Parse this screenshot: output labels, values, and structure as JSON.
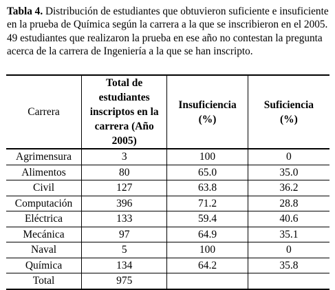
{
  "caption": {
    "label": "Tabla 4.",
    "text": "Distribución de estudiantes que obtuvieron suficiente e insuficiente en la prueba de Química según la carrera a la que se inscribieron en el 2005. 49 estudiantes que realizaron la prueba en ese año no contestan la pregunta acerca de la carrera de Ingeniería a la que se han inscripto."
  },
  "table": {
    "headers": {
      "carrera": "Carrera",
      "total": "Total de estudiantes inscriptos en la carrera (Año 2005)",
      "insuficiencia": "Insuficiencia (%)",
      "suficiencia": "Suficiencia (%)"
    },
    "rows": [
      {
        "carrera": "Agrimensura",
        "total": "3",
        "insuficiencia": "100",
        "suficiencia": "0"
      },
      {
        "carrera": "Alimentos",
        "total": "80",
        "insuficiencia": "65.0",
        "suficiencia": "35.0"
      },
      {
        "carrera": "Civil",
        "total": "127",
        "insuficiencia": "63.8",
        "suficiencia": "36.2"
      },
      {
        "carrera": "Computación",
        "total": "396",
        "insuficiencia": "71.2",
        "suficiencia": "28.8"
      },
      {
        "carrera": "Eléctrica",
        "total": "133",
        "insuficiencia": "59.4",
        "suficiencia": "40.6"
      },
      {
        "carrera": "Mecánica",
        "total": "97",
        "insuficiencia": "64.9",
        "suficiencia": "35.1"
      },
      {
        "carrera": "Naval",
        "total": "5",
        "insuficiencia": "100",
        "suficiencia": "0"
      },
      {
        "carrera": "Química",
        "total": "134",
        "insuficiencia": "64.2",
        "suficiencia": "35.8"
      }
    ],
    "total_row": {
      "carrera": "Total",
      "total": "975",
      "insuficiencia": "",
      "suficiencia": ""
    }
  }
}
